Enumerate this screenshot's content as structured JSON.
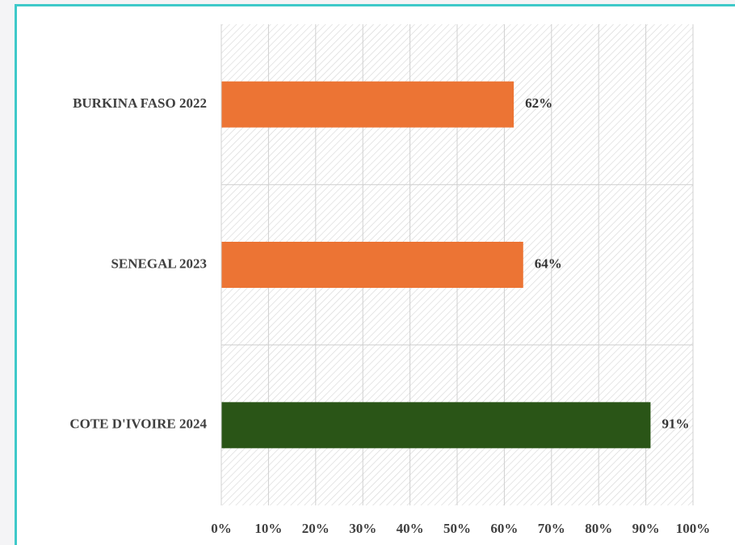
{
  "chart_data": {
    "type": "bar",
    "orientation": "horizontal",
    "categories": [
      "BURKINA FASO 2022",
      "SENEGAL 2023",
      "COTE D'IVOIRE 2024"
    ],
    "values": [
      62,
      64,
      91
    ],
    "value_labels": [
      "62%",
      "64%",
      "91%"
    ],
    "colors": [
      "#ec7434",
      "#ec7434",
      "#2a5517"
    ],
    "xlim": [
      0,
      100
    ],
    "xticks": [
      {
        "value": 0,
        "label": "0%"
      },
      {
        "value": 10,
        "label": "10%"
      },
      {
        "value": 20,
        "label": "20%"
      },
      {
        "value": 30,
        "label": "30%"
      },
      {
        "value": 40,
        "label": "40%"
      },
      {
        "value": 50,
        "label": "50%"
      },
      {
        "value": 60,
        "label": "60%"
      },
      {
        "value": 70,
        "label": "70%"
      },
      {
        "value": 80,
        "label": "80%"
      },
      {
        "value": 90,
        "label": "90%"
      },
      {
        "value": 100,
        "label": "100%"
      }
    ],
    "grid": true
  }
}
